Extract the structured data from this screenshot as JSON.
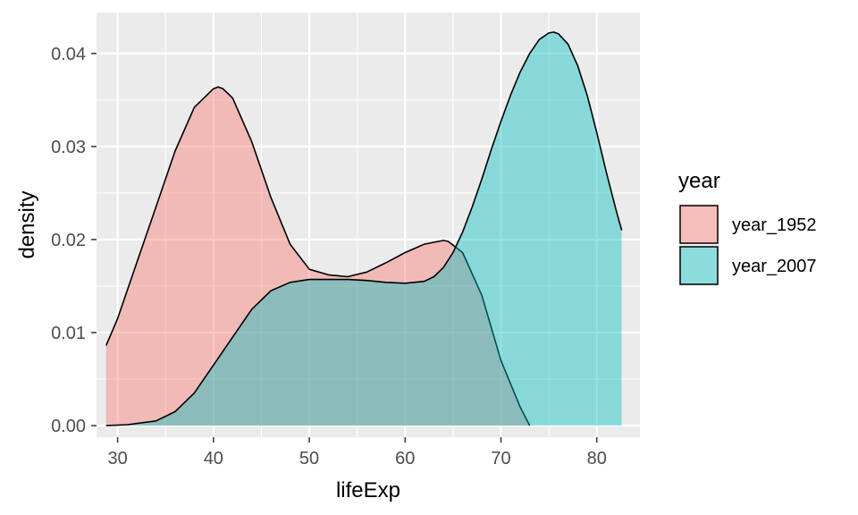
{
  "chart_data": {
    "type": "area",
    "xlabel": "lifeExp",
    "ylabel": "density",
    "xlim": [
      27.8,
      84.5
    ],
    "ylim": [
      -0.00125,
      0.0444
    ],
    "x_ticks": [
      30,
      40,
      50,
      60,
      70,
      80
    ],
    "x_tick_labels": [
      "30",
      "40",
      "50",
      "60",
      "70",
      "80"
    ],
    "y_ticks": [
      0.0,
      0.01,
      0.02,
      0.03,
      0.04
    ],
    "y_tick_labels": [
      "0.00",
      "0.01",
      "0.02",
      "0.03",
      "0.04"
    ],
    "grid": true,
    "legend": {
      "title": "year",
      "placement": "right"
    },
    "series": [
      {
        "name": "year_1952",
        "color": "#F8766D",
        "x": [
          28.8,
          30,
          32,
          34,
          36,
          38,
          40,
          40.5,
          41,
          42,
          44,
          46,
          48,
          50,
          52,
          54,
          56,
          58,
          60,
          62,
          64,
          64.5,
          66,
          68,
          70,
          72,
          73
        ],
        "values": [
          0.0086,
          0.0115,
          0.0175,
          0.0235,
          0.0295,
          0.0342,
          0.0362,
          0.0364,
          0.0362,
          0.0352,
          0.0305,
          0.0245,
          0.0195,
          0.0168,
          0.0162,
          0.016,
          0.0165,
          0.0175,
          0.0186,
          0.0195,
          0.0199,
          0.0198,
          0.0186,
          0.014,
          0.007,
          0.002,
          0.0
        ]
      },
      {
        "name": "year_2007",
        "color": "#00BFC4",
        "x": [
          28.8,
          31,
          34,
          36,
          38,
          40,
          42,
          44,
          46,
          48,
          50,
          52,
          54,
          56,
          58,
          60,
          62,
          63,
          64,
          65,
          66,
          67,
          68,
          69,
          70,
          71,
          72,
          73,
          74,
          75,
          75.5,
          76,
          77,
          78,
          79,
          80,
          81,
          82,
          82.6
        ],
        "values": [
          0.0,
          0.0001,
          0.0005,
          0.0015,
          0.0035,
          0.0065,
          0.0095,
          0.0125,
          0.0145,
          0.0154,
          0.0157,
          0.0157,
          0.0157,
          0.0156,
          0.0154,
          0.0153,
          0.0155,
          0.016,
          0.017,
          0.0186,
          0.0208,
          0.0235,
          0.0265,
          0.0297,
          0.0327,
          0.0355,
          0.038,
          0.04,
          0.0415,
          0.0422,
          0.0423,
          0.0421,
          0.041,
          0.0387,
          0.0355,
          0.0315,
          0.0272,
          0.0232,
          0.021
        ]
      }
    ]
  }
}
